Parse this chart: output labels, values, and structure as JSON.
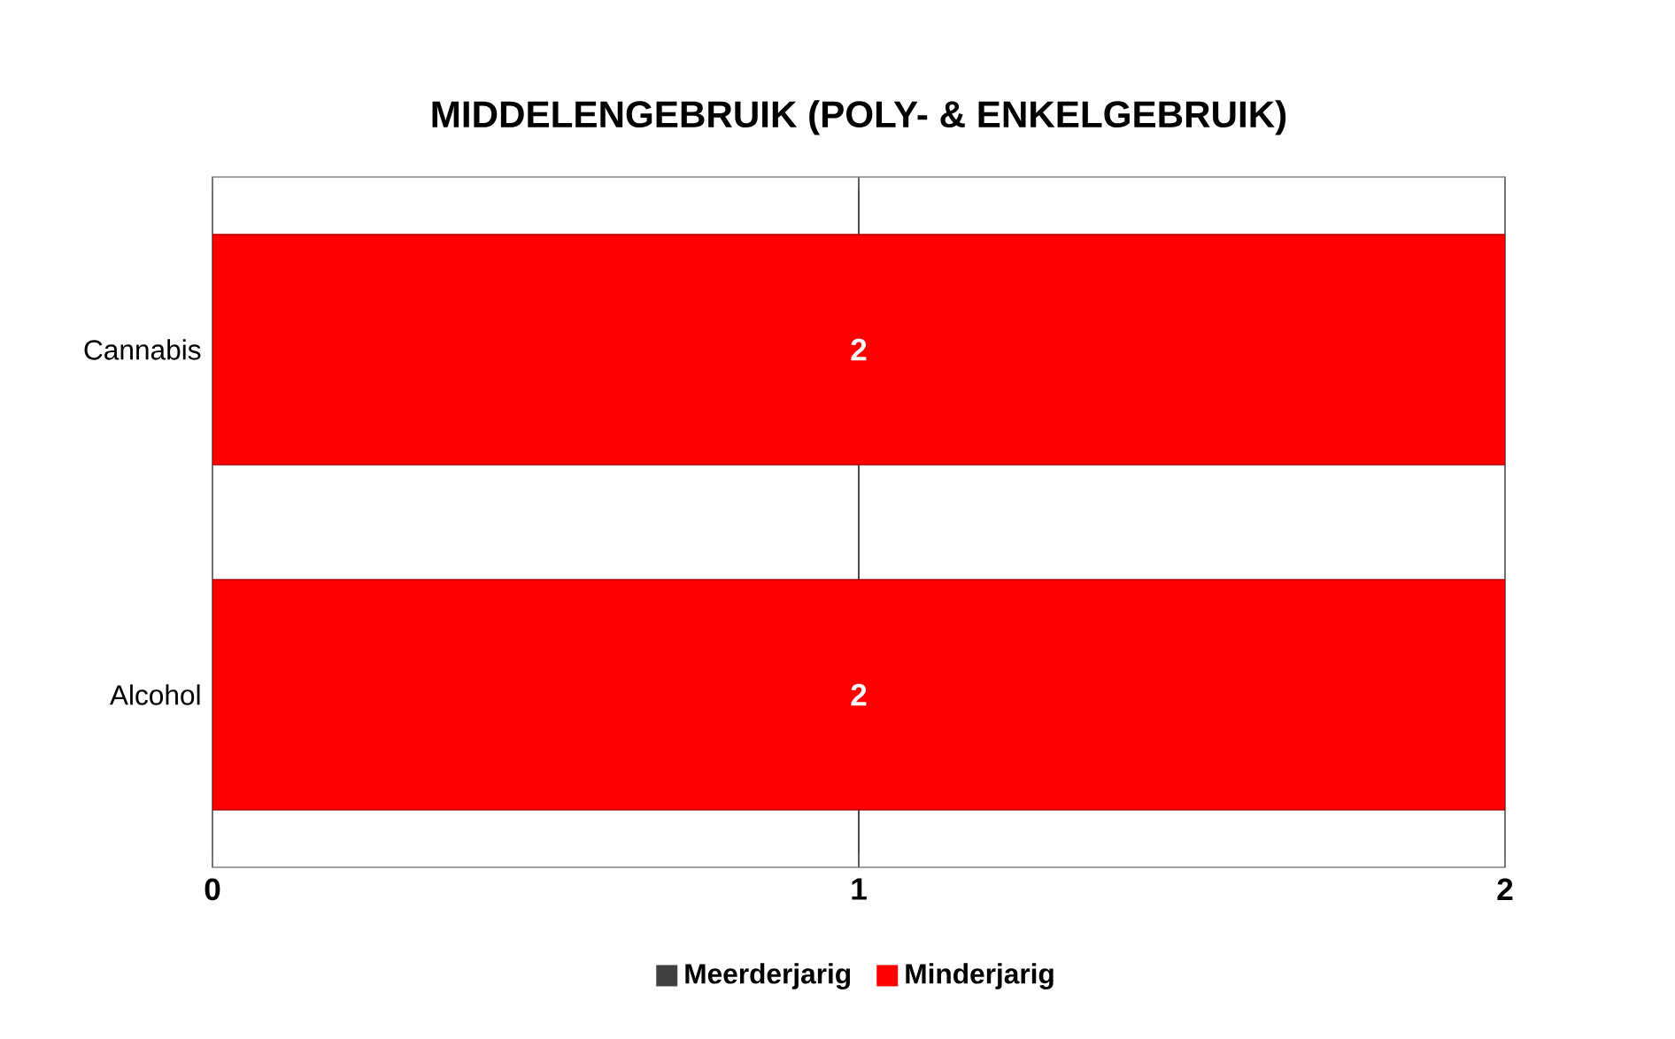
{
  "chart_data": {
    "type": "bar",
    "orientation": "horizontal",
    "stacked": true,
    "title": "MIDDELENGEBRUIK (POLY- & ENKELGEBRUIK)",
    "categories": [
      "Cannabis",
      "Alcohol"
    ],
    "series": [
      {
        "name": "Meerderjarig",
        "color": "#404040",
        "values": [
          0,
          0
        ]
      },
      {
        "name": "Minderjarig",
        "color": "#ff0000",
        "values": [
          2,
          2
        ],
        "value_labels": [
          "2",
          "2"
        ]
      }
    ],
    "xlim": [
      0,
      2
    ],
    "xticks": [
      0,
      1,
      2
    ],
    "grid": "x",
    "legend": "bottom"
  }
}
